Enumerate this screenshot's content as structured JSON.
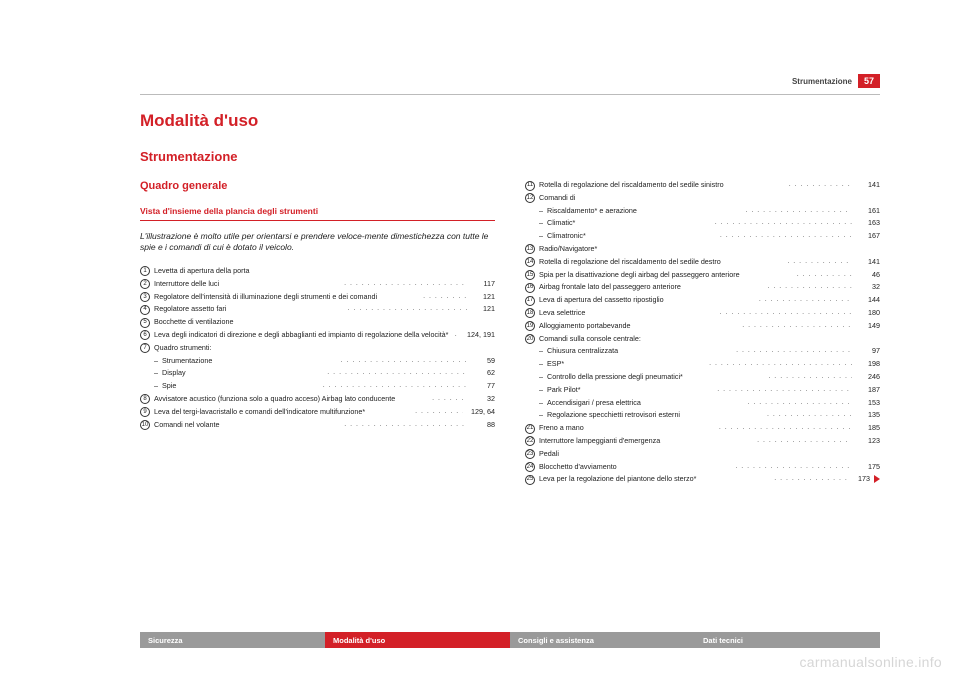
{
  "colors": {
    "accent": "#d32027",
    "text": "#222222",
    "footer_grey": "#9a9a9a",
    "rule": "#bbbbbb",
    "watermark": "#d6d6d6"
  },
  "header": {
    "section": "Strumentazione",
    "page_number": "57"
  },
  "title": "Modalità d'uso",
  "section": "Strumentazione",
  "subsection": "Quadro generale",
  "subtitle": "Vista d'insieme della plancia degli strumenti",
  "lead": "L'illustrazione è molto utile per orientarsi e prendere veloce-mente dimestichezza con tutte le spie e i comandi di cui è dotato il veicolo.",
  "left_items": [
    {
      "n": "1",
      "label": "Levetta di apertura della porta",
      "page": "",
      "nodots": true
    },
    {
      "n": "2",
      "label": "Interruttore delle luci",
      "page": "117"
    },
    {
      "n": "3",
      "label": "Regolatore dell'intensità di illuminazione degli strumenti e dei comandi",
      "page": "121"
    },
    {
      "n": "4",
      "label": "Regolatore assetto fari",
      "page": "121"
    },
    {
      "n": "5",
      "label": "Bocchette di ventilazione",
      "page": "",
      "nodots": true
    },
    {
      "n": "6",
      "label": "Leva degli indicatori di direzione e degli abbaglianti ed impianto di regolazione della velocità*",
      "page": "124, 191"
    },
    {
      "n": "7",
      "label": "Quadro strumenti:",
      "page": "",
      "nodots": true
    },
    {
      "sub": true,
      "label": "Strumentazione",
      "page": "59"
    },
    {
      "sub": true,
      "label": "Display",
      "page": "62"
    },
    {
      "sub": true,
      "label": "Spie",
      "page": "77"
    },
    {
      "n": "8",
      "label": "Avvisatore acustico (funziona solo a quadro acceso) Airbag lato conducente",
      "page": "32"
    },
    {
      "n": "9",
      "label": "Leva del tergi-lavacristallo e comandi dell'indicatore multifunzione*",
      "page": "129, 64"
    },
    {
      "n": "10",
      "label": "Comandi nel volante",
      "page": "88"
    }
  ],
  "right_items": [
    {
      "n": "11",
      "label": "Rotella di regolazione del riscaldamento del sedile sinistro",
      "page": "141"
    },
    {
      "n": "12",
      "label": "Comandi di",
      "page": "",
      "nodots": true
    },
    {
      "sub": true,
      "label": "Riscaldamento* e aerazione",
      "page": "161"
    },
    {
      "sub": true,
      "label": "Climatic*",
      "page": "163"
    },
    {
      "sub": true,
      "label": "Climatronic*",
      "page": "167"
    },
    {
      "n": "13",
      "label": "Radio/Navigatore*",
      "page": "",
      "nodots": true
    },
    {
      "n": "14",
      "label": "Rotella di regolazione del riscaldamento del sedile destro",
      "page": "141"
    },
    {
      "n": "15",
      "label": "Spia per la disattivazione degli airbag del passeggero anteriore",
      "page": "46"
    },
    {
      "n": "16",
      "label": "Airbag frontale lato del passeggero anteriore",
      "page": "32"
    },
    {
      "n": "17",
      "label": "Leva di apertura del cassetto ripostiglio",
      "page": "144"
    },
    {
      "n": "18",
      "label": "Leva selettrice",
      "page": "180"
    },
    {
      "n": "19",
      "label": "Alloggiamento portabevande",
      "page": "149"
    },
    {
      "n": "20",
      "label": "Comandi sulla console centrale:",
      "page": "",
      "nodots": true
    },
    {
      "sub": true,
      "label": "Chiusura centralizzata",
      "page": "97"
    },
    {
      "sub": true,
      "label": "ESP*",
      "page": "198"
    },
    {
      "sub": true,
      "label": "Controllo della pressione degli pneumatici*",
      "page": "246"
    },
    {
      "sub": true,
      "label": "Park Pilot*",
      "page": "187"
    },
    {
      "sub": true,
      "label": "Accendisigari / presa elettrica",
      "page": "153"
    },
    {
      "sub": true,
      "label": "Regolazione specchietti retrovisori esterni",
      "page": "135"
    },
    {
      "n": "21",
      "label": "Freno a mano",
      "page": "185"
    },
    {
      "n": "22",
      "label": "Interruttore lampeggianti d'emergenza",
      "page": "123"
    },
    {
      "n": "23",
      "label": "Pedali",
      "page": "",
      "nodots": true
    },
    {
      "n": "24",
      "label": "Blocchetto d'avviamento",
      "page": "175"
    },
    {
      "n": "25",
      "label": "Leva per la regolazione del piantone dello sterzo*",
      "page": "173",
      "cont": true
    }
  ],
  "footer_tabs": [
    {
      "label": "Sicurezza",
      "style": "t-grey"
    },
    {
      "label": "Modalità d'uso",
      "style": "t-red"
    },
    {
      "label": "Consigli e assistenza",
      "style": "t-grey"
    },
    {
      "label": "Dati tecnici",
      "style": "t-grey"
    }
  ],
  "watermark": "carmanualsonline.info"
}
